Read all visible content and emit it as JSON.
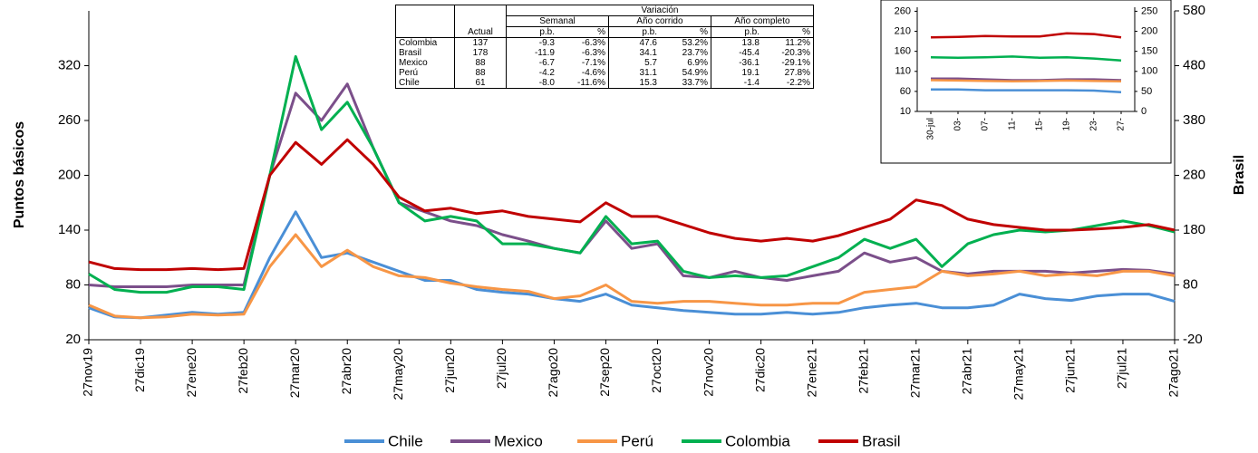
{
  "chart_data": [
    {
      "type": "line",
      "ylabel": "Puntos básicos",
      "y2label": "Brasil",
      "categories": [
        "27nov19",
        null,
        "27dic19",
        null,
        "27ene20",
        null,
        "27feb20",
        null,
        "27mar20",
        null,
        "27abr20",
        null,
        "27may20",
        null,
        "27jun20",
        null,
        "27jul20",
        null,
        "27ago20",
        null,
        "27sep20",
        null,
        "27oct20",
        null,
        "27nov20",
        null,
        "27dic20",
        null,
        "27ene21",
        null,
        "27feb21",
        null,
        "27mar21",
        null,
        "27abr21",
        null,
        "27may21",
        null,
        "27jun21",
        null,
        "27jul21",
        null,
        "27ago21"
      ],
      "ylim": [
        20,
        380
      ],
      "yticks": [
        20,
        80,
        140,
        200,
        260,
        320
      ],
      "y2lim": [
        -20,
        580
      ],
      "y2ticks": [
        -20,
        80,
        180,
        280,
        380,
        480,
        580
      ],
      "legend": "bottom",
      "series": [
        {
          "name": "Chile",
          "color": "#4a8fd6",
          "values": [
            55,
            45,
            44,
            47,
            50,
            48,
            50,
            110,
            160,
            110,
            115,
            105,
            95,
            85,
            85,
            75,
            72,
            70,
            65,
            62,
            70,
            58,
            55,
            52,
            50,
            48,
            48,
            50,
            48,
            50,
            55,
            58,
            60,
            55,
            55,
            58,
            70,
            65,
            63,
            68,
            70,
            70,
            62
          ]
        },
        {
          "name": "Mexico",
          "color": "#7b4f8a",
          "values": [
            80,
            78,
            78,
            78,
            80,
            80,
            80,
            200,
            290,
            260,
            300,
            230,
            170,
            160,
            150,
            145,
            135,
            128,
            120,
            115,
            150,
            120,
            125,
            90,
            88,
            95,
            88,
            85,
            90,
            95,
            115,
            105,
            110,
            95,
            92,
            95,
            95,
            95,
            93,
            95,
            97,
            96,
            92
          ]
        },
        {
          "name": "Perú",
          "color": "#f79646",
          "values": [
            58,
            46,
            44,
            45,
            48,
            47,
            48,
            100,
            135,
            100,
            118,
            100,
            90,
            88,
            82,
            78,
            75,
            73,
            65,
            68,
            80,
            62,
            60,
            62,
            62,
            60,
            58,
            58,
            60,
            60,
            72,
            75,
            78,
            95,
            90,
            92,
            95,
            90,
            92,
            90,
            95,
            95,
            90
          ]
        },
        {
          "name": "Colombia",
          "color": "#00b050",
          "values": [
            92,
            75,
            72,
            72,
            78,
            78,
            75,
            200,
            330,
            250,
            280,
            230,
            170,
            150,
            155,
            150,
            125,
            125,
            120,
            115,
            155,
            125,
            128,
            95,
            88,
            90,
            88,
            90,
            100,
            110,
            130,
            120,
            130,
            100,
            125,
            135,
            140,
            138,
            140,
            145,
            150,
            145,
            138
          ]
        },
        {
          "name": "Brasil",
          "color": "#c00000",
          "axis": "y2",
          "values": [
            122,
            110,
            108,
            108,
            110,
            108,
            110,
            280,
            340,
            300,
            345,
            300,
            240,
            215,
            220,
            210,
            215,
            205,
            200,
            195,
            230,
            205,
            205,
            190,
            175,
            165,
            160,
            165,
            160,
            170,
            185,
            200,
            235,
            225,
            200,
            190,
            185,
            180,
            180,
            182,
            185,
            190,
            180
          ]
        }
      ]
    },
    {
      "type": "line",
      "categories": [
        "30-jul",
        "03-",
        "07-",
        "11-",
        "15-",
        "19-",
        "23-",
        "27-"
      ],
      "ylim": [
        10,
        270
      ],
      "yticks": [
        10,
        60,
        110,
        160,
        210,
        260
      ],
      "y2lim": [
        0,
        260
      ],
      "y2ticks": [
        0,
        50,
        100,
        150,
        200,
        250
      ],
      "series": [
        {
          "name": "Chile",
          "color": "#4a8fd6",
          "values": [
            65,
            65,
            63,
            63,
            63,
            63,
            62,
            58
          ]
        },
        {
          "name": "Mexico",
          "color": "#7b4f8a",
          "values": [
            92,
            92,
            90,
            88,
            88,
            90,
            90,
            88
          ]
        },
        {
          "name": "Perú",
          "color": "#f79646",
          "values": [
            88,
            87,
            86,
            85,
            86,
            87,
            86,
            85
          ]
        },
        {
          "name": "Colombia",
          "color": "#00b050",
          "values": [
            145,
            144,
            145,
            147,
            144,
            145,
            142,
            137
          ]
        },
        {
          "name": "Brasil",
          "color": "#c00000",
          "axis": "y2",
          "values": [
            185,
            186,
            188,
            187,
            187,
            195,
            193,
            185
          ]
        }
      ]
    }
  ],
  "table": {
    "top": "Variación",
    "groups": [
      "Semanal",
      "Año corrido",
      "Año completo"
    ],
    "columns": [
      "Actual",
      "p.b.",
      "%",
      "p.b.",
      "%",
      "p.b.",
      "%"
    ],
    "rows": [
      [
        "Colombia",
        "137",
        "-9.3",
        "-6.3%",
        "47.6",
        "53.2%",
        "13.8",
        "11.2%"
      ],
      [
        "Brasil",
        "178",
        "-11.9",
        "-6.3%",
        "34.1",
        "23.7%",
        "-45.4",
        "-20.3%"
      ],
      [
        "Mexico",
        "88",
        "-6.7",
        "-7.1%",
        "5.7",
        "6.9%",
        "-36.1",
        "-29.1%"
      ],
      [
        "Perú",
        "88",
        "-4.2",
        "-4.6%",
        "31.1",
        "54.9%",
        "19.1",
        "27.8%"
      ],
      [
        "Chile",
        "61",
        "-8.0",
        "-11.6%",
        "15.3",
        "33.7%",
        "-1.4",
        "-2.2%"
      ]
    ]
  }
}
